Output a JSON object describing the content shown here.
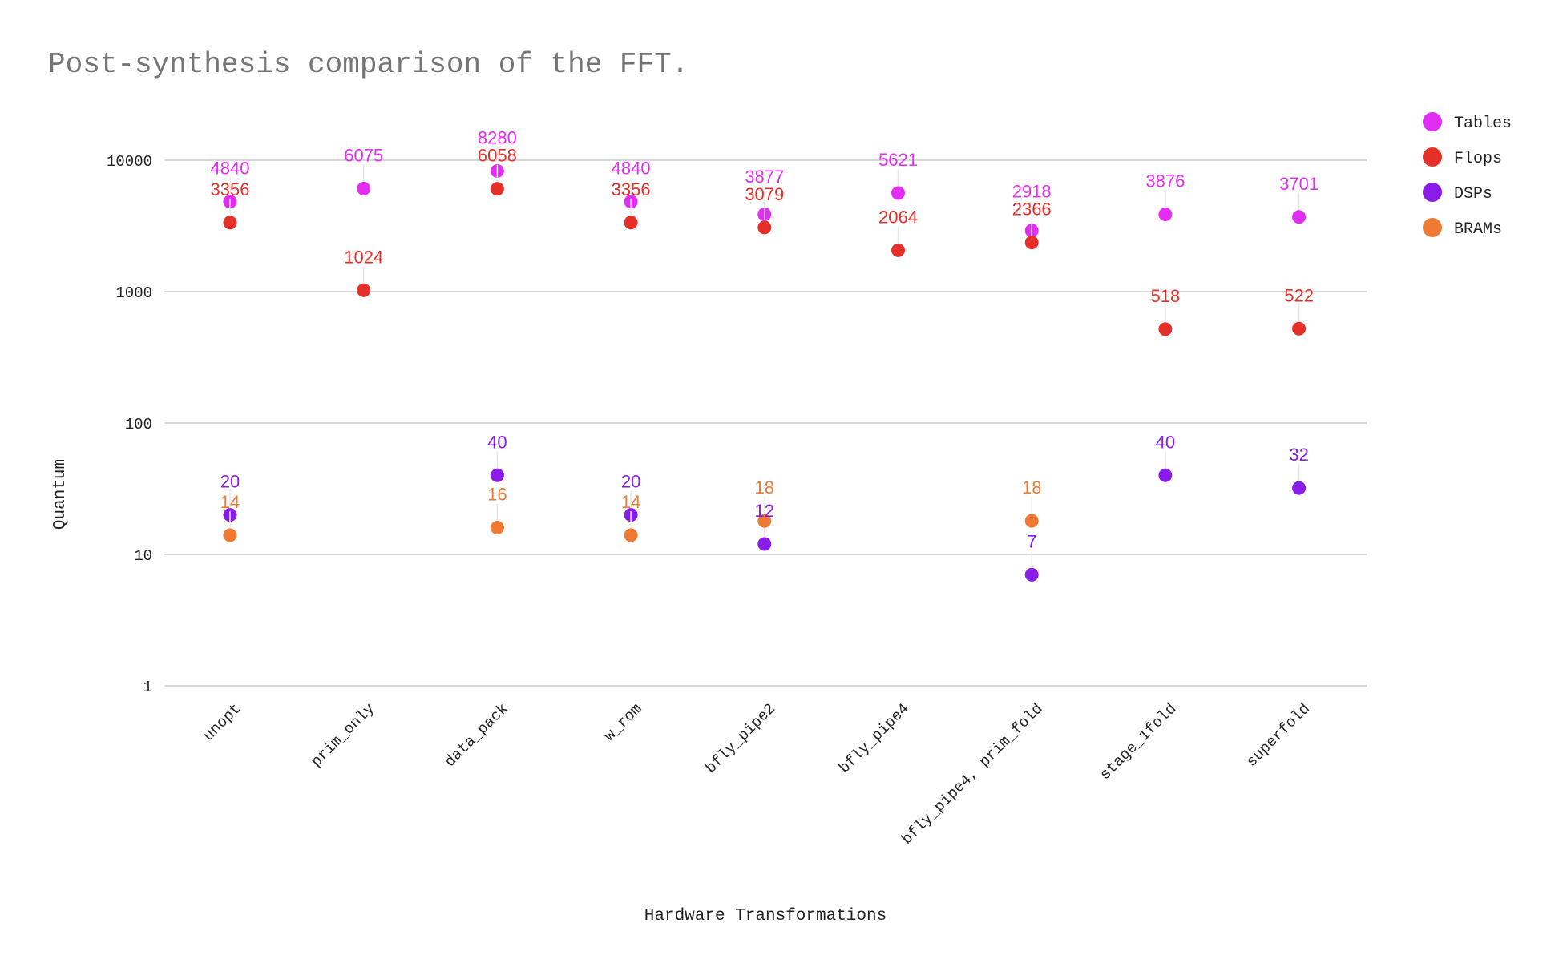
{
  "chart_data": {
    "type": "scatter",
    "title": "Post-synthesis comparison of the FFT.",
    "xlabel": "Hardware Transformations",
    "ylabel": "Quantum",
    "yscale": "log",
    "ylim": [
      1,
      10000
    ],
    "yticks": [
      {
        "value": 1,
        "label": "1"
      },
      {
        "value": 10,
        "label": "10"
      },
      {
        "value": 100,
        "label": "100"
      },
      {
        "value": 1000,
        "label": "1000"
      },
      {
        "value": 10000,
        "label": "10000"
      }
    ],
    "categories": [
      "unopt",
      "prim_only",
      "data_pack",
      "w_rom",
      "bfly_pipe2",
      "bfly_pipe4",
      "bfly_pipe4, prim_fold",
      "stage_1fold",
      "superfold"
    ],
    "legend_position": "right",
    "series": [
      {
        "name": "Tables",
        "color": "#e22ef2",
        "values": [
          4840,
          6075,
          8280,
          4840,
          3877,
          5621,
          2918,
          3876,
          3701
        ]
      },
      {
        "name": "Flops",
        "color": "#e5302a",
        "values": [
          3356,
          1024,
          6058,
          3356,
          3079,
          2064,
          2366,
          518,
          522
        ]
      },
      {
        "name": "DSPs",
        "color": "#8a1ce8",
        "values": [
          20,
          null,
          40,
          20,
          12,
          null,
          7,
          40,
          32
        ]
      },
      {
        "name": "BRAMs",
        "color": "#ee7a33",
        "values": [
          14,
          null,
          16,
          14,
          18,
          null,
          18,
          null,
          null
        ]
      }
    ]
  }
}
